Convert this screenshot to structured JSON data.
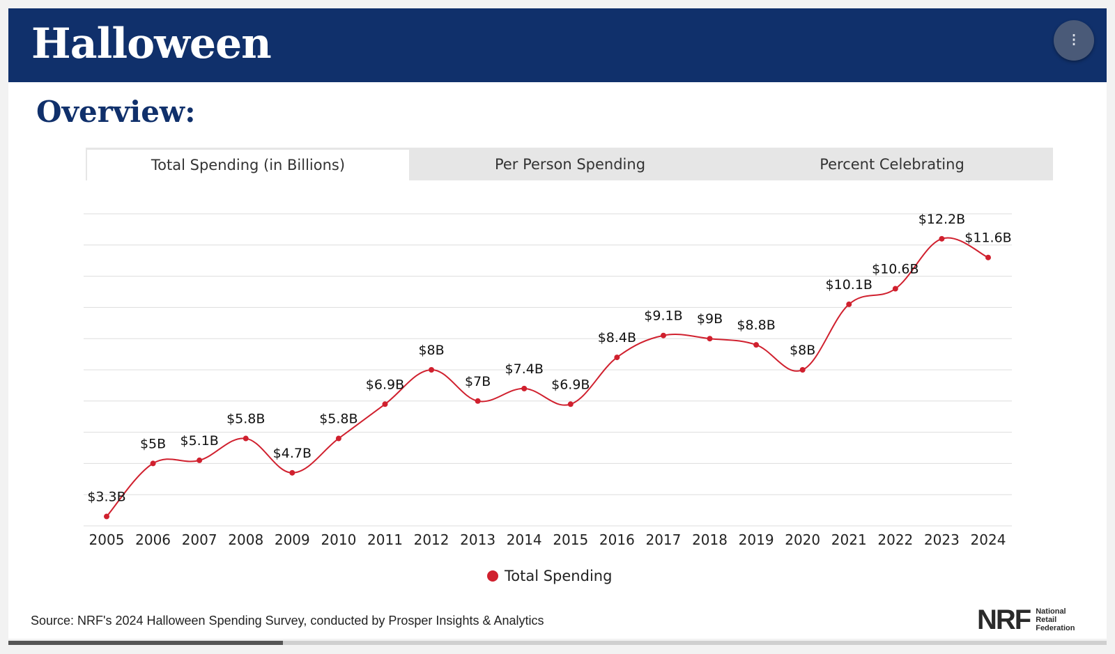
{
  "header": {
    "title": "Halloween"
  },
  "subtitle": "Overview:",
  "tabs": [
    {
      "label": "Total Spending (in Billions)",
      "active": true
    },
    {
      "label": "Per Person Spending",
      "active": false
    },
    {
      "label": "Percent Celebrating",
      "active": false
    }
  ],
  "chart_data": {
    "type": "line",
    "title": "",
    "xlabel": "",
    "ylabel": "",
    "categories": [
      "2005",
      "2006",
      "2007",
      "2008",
      "2009",
      "2010",
      "2011",
      "2012",
      "2013",
      "2014",
      "2015",
      "2016",
      "2017",
      "2018",
      "2019",
      "2020",
      "2021",
      "2022",
      "2023",
      "2024"
    ],
    "series": [
      {
        "name": "Total Spending",
        "values": [
          3.3,
          5.0,
          5.1,
          5.8,
          4.7,
          5.8,
          6.9,
          8.0,
          7.0,
          7.4,
          6.9,
          8.4,
          9.1,
          9.0,
          8.8,
          8.0,
          10.1,
          10.6,
          12.2,
          11.6
        ],
        "labels": [
          "$3.3B",
          "$5B",
          "$5.1B",
          "$5.8B",
          "$4.7B",
          "$5.8B",
          "$6.9B",
          "$8B",
          "$7B",
          "$7.4B",
          "$6.9B",
          "$8.4B",
          "$9.1B",
          "$9B",
          "$8.8B",
          "$8B",
          "$10.1B",
          "$10.6B",
          "$12.2B",
          "$11.6B"
        ],
        "color": "#d0202e"
      }
    ],
    "ylim": [
      3,
      13
    ],
    "grid": true,
    "legend": "bottom"
  },
  "source": "Source: NRF's 2024 Halloween Spending Survey, conducted by Prosper Insights & Analytics",
  "logo": {
    "mark": "NRF",
    "text": [
      "National",
      "Retail",
      "Federation"
    ]
  },
  "progress": {
    "fraction": 0.25
  },
  "colors": {
    "header": "#10306b",
    "line": "#d0202e",
    "grid": "#dddddd"
  },
  "icons": {
    "menu": "menu-icon"
  }
}
